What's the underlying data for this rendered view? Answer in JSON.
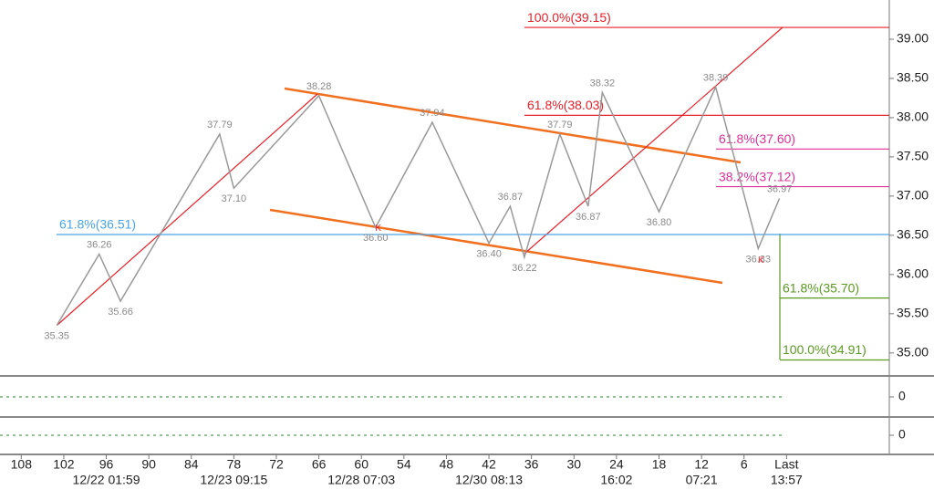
{
  "chart_data": {
    "type": "line",
    "x": [
      103,
      97,
      94,
      80,
      78,
      66,
      58,
      50,
      42,
      39,
      37,
      32,
      28,
      26,
      18,
      10,
      4,
      1
    ],
    "values": [
      35.35,
      36.26,
      35.66,
      37.79,
      37.1,
      38.28,
      36.6,
      37.94,
      36.4,
      36.87,
      36.22,
      37.79,
      36.87,
      38.32,
      36.8,
      38.39,
      36.33,
      36.97
    ],
    "value_labels": [
      "35.35",
      "36.26",
      "35.66",
      "37.79",
      "37.10",
      "38.28",
      "36.60",
      "37.94",
      "36.40",
      "36.87",
      "36.22",
      "37.79",
      "36.87",
      "38.32",
      "36.80",
      "38.39",
      "36.33",
      "36.97"
    ],
    "color": "#999999",
    "xlim": [
      111,
      -14.5
    ],
    "xticks": [
      108,
      102,
      96,
      90,
      84,
      78,
      72,
      66,
      60,
      54,
      48,
      42,
      36,
      30,
      24,
      18,
      12,
      6,
      {
        "value": 0,
        "label": "Last"
      }
    ],
    "date_ticks": [
      {
        "value": 96,
        "label": "12/22 01:59"
      },
      {
        "value": 78,
        "label": "12/23 09:15"
      },
      {
        "value": 60,
        "label": "12/28 07:03"
      },
      {
        "value": 42,
        "label": "12/30 08:13"
      },
      {
        "value": 24,
        "label": "16:02"
      },
      {
        "value": 12,
        "label": "07:21"
      },
      {
        "value": 0,
        "label": "13:57"
      }
    ],
    "ylim": [
      34.73,
      39.5
    ],
    "yticks": [
      {
        "value": 35,
        "label": "35.00"
      },
      {
        "value": 35.5,
        "label": "35.50"
      },
      {
        "value": 36,
        "label": "36.00"
      },
      {
        "value": 36.5,
        "label": "36.50"
      },
      {
        "value": 37,
        "label": "37.00"
      },
      {
        "value": 37.5,
        "label": "37.50"
      },
      {
        "value": 38,
        "label": "38.00"
      },
      {
        "value": 38.5,
        "label": "38.50"
      },
      {
        "value": 39,
        "label": "39.00"
      }
    ],
    "levels": [
      {
        "value": 39.15,
        "label": "100.0%(39.15)",
        "color": "#e8202a"
      },
      {
        "value": 38.03,
        "label": "61.8%(38.03)",
        "color": "#e8202a"
      },
      {
        "value": 37.6,
        "label": "61.8%(37.60)",
        "color": "#e0309a"
      },
      {
        "value": 37.12,
        "label": "38.2%(37.12)",
        "color": "#e0309a"
      },
      {
        "value": 36.51,
        "label": "61.8%(36.51)",
        "color": "#4aa3e8"
      },
      {
        "value": 35.7,
        "label": "61.8%(35.70)",
        "color": "#5a9a20"
      },
      {
        "value": 34.91,
        "label": "100.0%(34.91)",
        "color": "#5a9a20"
      }
    ],
    "markers": [
      "K",
      "K"
    ],
    "indicators": [
      {
        "yticks": [
          0
        ]
      },
      {
        "yticks": [
          0
        ]
      }
    ]
  }
}
